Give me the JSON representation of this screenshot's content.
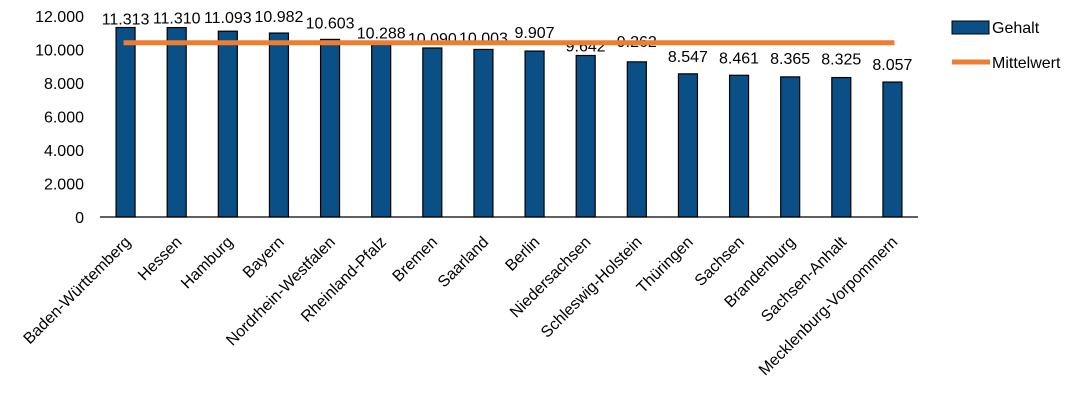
{
  "chart_data": {
    "type": "bar",
    "categories": [
      "Baden-Württemberg",
      "Hessen",
      "Hamburg",
      "Bayern",
      "Nordrhein-Westfalen",
      "Rheinland-Pfalz",
      "Bremen",
      "Saarland",
      "Berlin",
      "Niedersachsen",
      "Schleswig-Holstein",
      "Thüringen",
      "Sachsen",
      "Brandenburg",
      "Sachsen-Anhalt",
      "Mecklenburg-Vorpommern"
    ],
    "series": [
      {
        "name": "Gehalt",
        "type": "bar",
        "color": "#0b4f87",
        "values": [
          11313,
          11310,
          11093,
          10982,
          10603,
          10288,
          10090,
          10003,
          9907,
          9642,
          9262,
          8547,
          8461,
          8365,
          8325,
          8057
        ],
        "labels": [
          "11.313",
          "11.310",
          "11.093",
          "10.982",
          "10.603",
          "10.288",
          "10.090",
          "10.003",
          "9.907",
          "9.642",
          "9.262",
          "8.547",
          "8.461",
          "8.365",
          "8.325",
          "8.057"
        ]
      },
      {
        "name": "Mittelwert",
        "type": "line",
        "color": "#ed7d31",
        "value": 10400
      }
    ],
    "yticks": [
      0,
      2000,
      4000,
      6000,
      8000,
      10000,
      12000
    ],
    "ytick_labels": [
      "0",
      "2.000",
      "4.000",
      "6.000",
      "8.000",
      "10.000",
      "12.000"
    ],
    "ylim": [
      0,
      12000
    ],
    "title": "",
    "xlabel": "",
    "ylabel": "",
    "grid": false,
    "legend_position": "right-top"
  }
}
